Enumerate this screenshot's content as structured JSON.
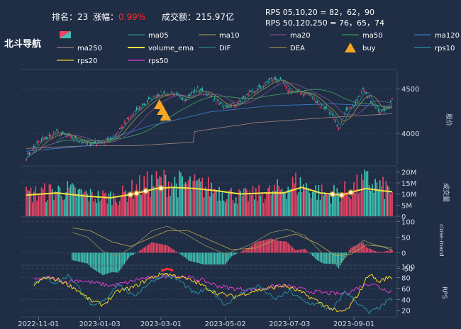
{
  "header": {
    "rank_label": "排名：",
    "rank_value": "23",
    "change_label": "涨幅：",
    "change_value": "0.99%",
    "turnover_label": "成交额：",
    "turnover_value": "215.97亿",
    "rps_line1": "RPS 05,10,20 = 82，62，90",
    "rps_line2": "RPS 50,120,250 = 76，65，74",
    "name": "北斗导航"
  },
  "colors": {
    "bg": "#1f2d45",
    "up": "#ef4565",
    "down": "#3fc5b4",
    "grid": "#3c4d68",
    "axis_text": "#d5dbe6",
    "change_value": "#ff2b2b"
  },
  "legend": [
    {
      "label": "",
      "color": "#ef4565",
      "kind": "candle"
    },
    {
      "label": "ma05",
      "color": "#2d8a80",
      "kind": "line"
    },
    {
      "label": "ma10",
      "color": "#9c8a4a",
      "kind": "line"
    },
    {
      "label": "ma20",
      "color": "#7a4d8f",
      "kind": "line"
    },
    {
      "label": "ma50",
      "color": "#3f9a5a",
      "kind": "line"
    },
    {
      "label": "ma120",
      "color": "#3b78c2",
      "kind": "line"
    },
    {
      "label": "ma250",
      "color": "#9c7f7a",
      "kind": "line"
    },
    {
      "label": "volume_ema",
      "color": "#f5e342",
      "kind": "line"
    },
    {
      "label": "DIF",
      "color": "#2d8a80",
      "kind": "line"
    },
    {
      "label": "DEA",
      "color": "#9c8a4a",
      "kind": "line"
    },
    {
      "label": "buy",
      "color": "#f5a623",
      "kind": "triangle"
    },
    {
      "label": "rps10",
      "color": "#2a8ea0",
      "kind": "line"
    },
    {
      "label": "rps20",
      "color": "#f5d51e",
      "kind": "line"
    },
    {
      "label": "rps50",
      "color": "#e03cd0",
      "kind": "line"
    }
  ],
  "panel_labels": {
    "price": "股价",
    "volume": "成交量",
    "macd": "close-macd",
    "rps": "RPS"
  },
  "chart_data": {
    "type": "candlestick",
    "x_ticks": [
      "2022-11-01",
      "2023-01-03",
      "2023-03-01",
      "2023-05-02",
      "2023-07-03",
      "2023-09-01"
    ],
    "x_tick_index": [
      8,
      48,
      88,
      130,
      172,
      214
    ],
    "n_days": 240,
    "price": {
      "ylim": [
        3650,
        4700
      ],
      "ticks": [
        4000,
        4500
      ],
      "anchors": [
        [
          0,
          3730
        ],
        [
          8,
          3900
        ],
        [
          20,
          4010
        ],
        [
          32,
          3930
        ],
        [
          40,
          3880
        ],
        [
          48,
          3900
        ],
        [
          56,
          3940
        ],
        [
          64,
          4110
        ],
        [
          72,
          4250
        ],
        [
          80,
          4370
        ],
        [
          88,
          4450
        ],
        [
          96,
          4430
        ],
        [
          104,
          4380
        ],
        [
          112,
          4500
        ],
        [
          118,
          4440
        ],
        [
          124,
          4360
        ],
        [
          130,
          4290
        ],
        [
          138,
          4340
        ],
        [
          146,
          4440
        ],
        [
          154,
          4530
        ],
        [
          160,
          4610
        ],
        [
          166,
          4590
        ],
        [
          172,
          4470
        ],
        [
          180,
          4460
        ],
        [
          186,
          4430
        ],
        [
          192,
          4310
        ],
        [
          198,
          4250
        ],
        [
          204,
          4040
        ],
        [
          210,
          4290
        ],
        [
          216,
          4360
        ],
        [
          220,
          4510
        ],
        [
          226,
          4320
        ],
        [
          232,
          4240
        ],
        [
          236,
          4300
        ],
        [
          239,
          4390
        ]
      ],
      "ma250_anchors": [
        [
          0,
          3830
        ],
        [
          40,
          3860
        ],
        [
          70,
          3860
        ],
        [
          109,
          3900
        ],
        [
          110,
          4020
        ],
        [
          150,
          4120
        ],
        [
          200,
          4180
        ],
        [
          239,
          4220
        ]
      ],
      "ma120_anchors": [
        [
          0,
          3800
        ],
        [
          40,
          3860
        ],
        [
          80,
          4080
        ],
        [
          120,
          4240
        ],
        [
          160,
          4310
        ],
        [
          200,
          4330
        ],
        [
          239,
          4300
        ]
      ],
      "buy_marks": [
        87,
        89,
        91
      ]
    },
    "volume": {
      "ylim": [
        0,
        22
      ],
      "ticks": [
        [
          "20M",
          20
        ],
        [
          "15M",
          15
        ],
        [
          "10M",
          10
        ],
        [
          "5M",
          5
        ],
        [
          "0",
          0
        ]
      ],
      "ema_anchors": [
        [
          0,
          9.5
        ],
        [
          20,
          10.5
        ],
        [
          40,
          9.0
        ],
        [
          55,
          8.3
        ],
        [
          70,
          10.0
        ],
        [
          85,
          12.5
        ],
        [
          96,
          13.0
        ],
        [
          110,
          12.5
        ],
        [
          124,
          11.5
        ],
        [
          140,
          10.0
        ],
        [
          156,
          10.5
        ],
        [
          168,
          10.5
        ],
        [
          180,
          13.0
        ],
        [
          192,
          10.5
        ],
        [
          206,
          9.5
        ],
        [
          216,
          11.5
        ],
        [
          222,
          12.5
        ],
        [
          232,
          11.5
        ],
        [
          239,
          11.0
        ]
      ],
      "level_anchors": [
        [
          0,
          10
        ],
        [
          25,
          12
        ],
        [
          45,
          9
        ],
        [
          60,
          9
        ],
        [
          75,
          14
        ],
        [
          90,
          16
        ],
        [
          100,
          15
        ],
        [
          120,
          13
        ],
        [
          140,
          9
        ],
        [
          160,
          11
        ],
        [
          176,
          15
        ],
        [
          196,
          10
        ],
        [
          212,
          12
        ],
        [
          222,
          16
        ],
        [
          232,
          13
        ],
        [
          239,
          12
        ]
      ],
      "markers": [
        68,
        72,
        78,
        88,
        200,
        206,
        212
      ]
    },
    "macd": {
      "ylim": [
        -40,
        110
      ],
      "ticks": [
        100,
        50,
        0,
        -50
      ],
      "dif_anchors": [
        [
          30,
          65
        ],
        [
          40,
          50
        ],
        [
          50,
          5
        ],
        [
          60,
          -10
        ],
        [
          70,
          20
        ],
        [
          82,
          70
        ],
        [
          92,
          85
        ],
        [
          104,
          60
        ],
        [
          116,
          25
        ],
        [
          130,
          -5
        ],
        [
          146,
          25
        ],
        [
          160,
          65
        ],
        [
          170,
          75
        ],
        [
          182,
          55
        ],
        [
          194,
          -5
        ],
        [
          204,
          -40
        ],
        [
          212,
          5
        ],
        [
          220,
          40
        ],
        [
          228,
          25
        ],
        [
          238,
          15
        ]
      ],
      "dea_anchors": [
        [
          30,
          80
        ],
        [
          42,
          70
        ],
        [
          56,
          35
        ],
        [
          68,
          20
        ],
        [
          80,
          45
        ],
        [
          92,
          70
        ],
        [
          106,
          70
        ],
        [
          120,
          40
        ],
        [
          134,
          10
        ],
        [
          150,
          15
        ],
        [
          164,
          45
        ],
        [
          176,
          60
        ],
        [
          190,
          30
        ],
        [
          202,
          -10
        ],
        [
          212,
          -5
        ],
        [
          222,
          25
        ],
        [
          232,
          20
        ],
        [
          238,
          10
        ]
      ]
    },
    "rps": {
      "ylim": [
        8,
        100
      ],
      "ticks": [
        100,
        80,
        60,
        40,
        20
      ],
      "rps10_anchors": [
        [
          5,
          70
        ],
        [
          10,
          80
        ],
        [
          20,
          70
        ],
        [
          28,
          85
        ],
        [
          36,
          55
        ],
        [
          44,
          25
        ],
        [
          52,
          40
        ],
        [
          60,
          70
        ],
        [
          70,
          45
        ],
        [
          80,
          70
        ],
        [
          90,
          85
        ],
        [
          100,
          75
        ],
        [
          110,
          50
        ],
        [
          120,
          60
        ],
        [
          130,
          30
        ],
        [
          142,
          55
        ],
        [
          152,
          65
        ],
        [
          162,
          40
        ],
        [
          172,
          55
        ],
        [
          182,
          35
        ],
        [
          192,
          30
        ],
        [
          200,
          20
        ],
        [
          208,
          55
        ],
        [
          216,
          35
        ],
        [
          224,
          15
        ],
        [
          232,
          28
        ],
        [
          238,
          40
        ]
      ],
      "rps20_anchors": [
        [
          5,
          65
        ],
        [
          12,
          80
        ],
        [
          22,
          75
        ],
        [
          32,
          60
        ],
        [
          42,
          38
        ],
        [
          50,
          30
        ],
        [
          60,
          55
        ],
        [
          70,
          62
        ],
        [
          80,
          78
        ],
        [
          90,
          88
        ],
        [
          102,
          80
        ],
        [
          112,
          70
        ],
        [
          124,
          52
        ],
        [
          136,
          45
        ],
        [
          148,
          55
        ],
        [
          158,
          60
        ],
        [
          168,
          65
        ],
        [
          178,
          55
        ],
        [
          188,
          40
        ],
        [
          196,
          28
        ],
        [
          204,
          16
        ],
        [
          210,
          22
        ],
        [
          218,
          55
        ],
        [
          224,
          88
        ],
        [
          230,
          72
        ],
        [
          236,
          80
        ],
        [
          239,
          80
        ]
      ],
      "rps50_anchors": [
        [
          5,
          75
        ],
        [
          15,
          80
        ],
        [
          25,
          72
        ],
        [
          35,
          75
        ],
        [
          45,
          70
        ],
        [
          55,
          65
        ],
        [
          65,
          70
        ],
        [
          75,
          78
        ],
        [
          85,
          80
        ],
        [
          95,
          84
        ],
        [
          105,
          80
        ],
        [
          115,
          75
        ],
        [
          125,
          65
        ],
        [
          135,
          60
        ],
        [
          145,
          58
        ],
        [
          155,
          60
        ],
        [
          165,
          66
        ],
        [
          175,
          62
        ],
        [
          185,
          55
        ],
        [
          195,
          52
        ],
        [
          205,
          50
        ],
        [
          212,
          55
        ],
        [
          220,
          66
        ],
        [
          226,
          70
        ],
        [
          232,
          60
        ],
        [
          238,
          55
        ]
      ],
      "highlight_range": [
        88,
        96
      ]
    }
  }
}
